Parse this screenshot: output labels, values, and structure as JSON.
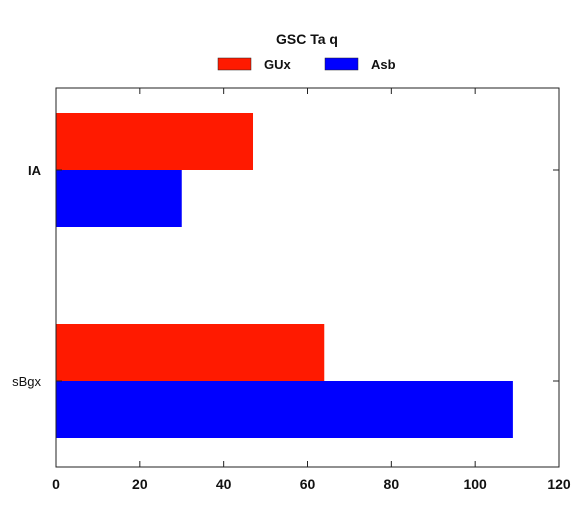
{
  "chart_data": {
    "type": "bar",
    "orientation": "horizontal",
    "title": "GSC Ta q",
    "categories": [
      "IA",
      "sBgx"
    ],
    "series": [
      {
        "name": "GUx",
        "color": "#ff1a00",
        "values": [
          47,
          64
        ]
      },
      {
        "name": "Asb",
        "color": "#0000ff",
        "values": [
          30,
          109
        ]
      }
    ],
    "xlim": [
      0,
      120
    ],
    "xticks": [
      0,
      20,
      40,
      60,
      80,
      100,
      120
    ],
    "grid": false,
    "legend_position": "top-center"
  }
}
